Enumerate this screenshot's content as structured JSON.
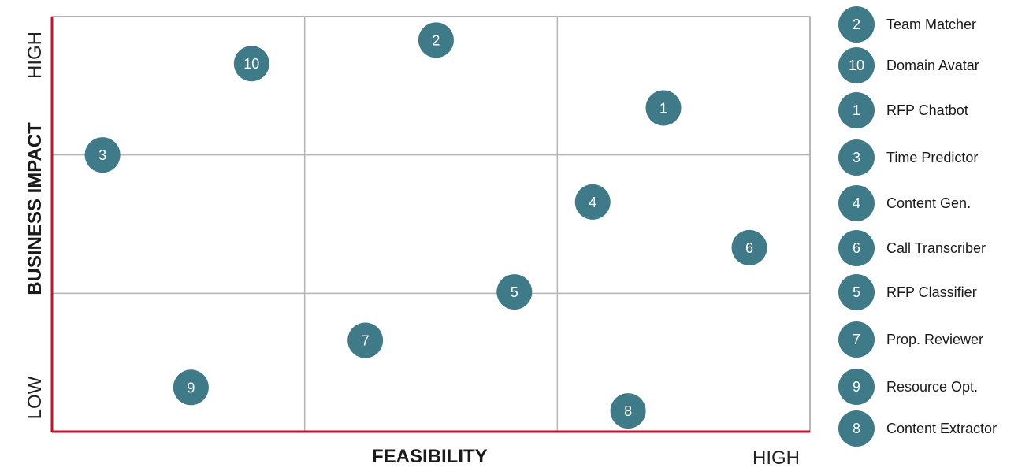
{
  "colors": {
    "marker": "#3f7a88",
    "axis": "#c8102e",
    "grid": "#b5b5b5",
    "border": "#9e9e9e"
  },
  "axes": {
    "x_title": "FEASIBILITY",
    "x_high": "HIGH",
    "y_title": "BUSINESS IMPACT",
    "y_high": "HIGH",
    "y_low": "LOW"
  },
  "chart_data": {
    "type": "scatter",
    "xlim": [
      0,
      3
    ],
    "ylim": [
      0,
      3
    ],
    "grid": true,
    "legend_placement": "right",
    "points": [
      {
        "id": "2",
        "label": "Team Matcher",
        "x": 1.52,
        "y": 2.83
      },
      {
        "id": "10",
        "label": "Domain Avatar",
        "x": 0.79,
        "y": 2.66
      },
      {
        "id": "1",
        "label": "RFP Chatbot",
        "x": 2.42,
        "y": 2.34
      },
      {
        "id": "3",
        "label": "Time Predictor",
        "x": 0.2,
        "y": 2.0
      },
      {
        "id": "4",
        "label": "Content Gen.",
        "x": 2.14,
        "y": 1.66
      },
      {
        "id": "6",
        "label": "Call Transcriber",
        "x": 2.76,
        "y": 1.33
      },
      {
        "id": "5",
        "label": "RFP Classifier",
        "x": 1.83,
        "y": 1.01
      },
      {
        "id": "7",
        "label": "Prop. Reviewer",
        "x": 1.24,
        "y": 0.66
      },
      {
        "id": "9",
        "label": "Resource Opt.",
        "x": 0.55,
        "y": 0.32
      },
      {
        "id": "8",
        "label": "Content Extractor",
        "x": 2.28,
        "y": 0.15
      }
    ]
  }
}
